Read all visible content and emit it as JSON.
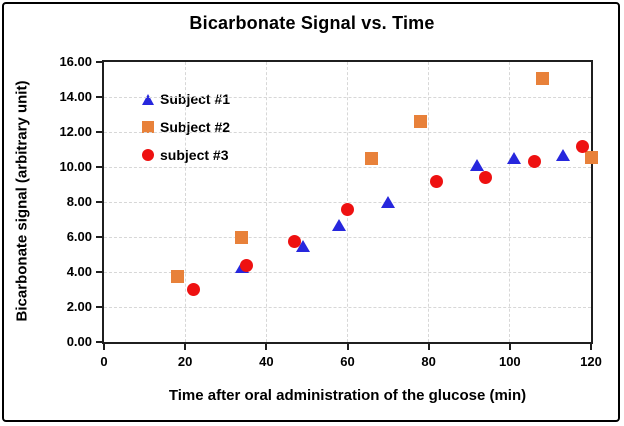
{
  "figure": {
    "background": "#ffffff",
    "border_color": "#000000",
    "axis_color": "#1f1f1f"
  },
  "chart_data": {
    "type": "scatter",
    "title": "Bicarbonate Signal vs. Time",
    "xlabel": "Time after oral administration of the glucose (min)",
    "ylabel": "Bicarbonate signal (arbitrary unit)",
    "xlim": [
      0,
      120
    ],
    "ylim": [
      0,
      16
    ],
    "x_ticks": [
      0,
      20,
      40,
      60,
      80,
      100,
      120
    ],
    "x_tick_labels": [
      "0",
      "20",
      "40",
      "60",
      "80",
      "100",
      "120"
    ],
    "y_ticks": [
      0,
      2,
      4,
      6,
      8,
      10,
      12,
      14,
      16
    ],
    "y_tick_labels": [
      "0.00",
      "2.00",
      "4.00",
      "6.00",
      "8.00",
      "10.00",
      "12.00",
      "14.00",
      "16.00"
    ],
    "grid": true,
    "gridline_color": "#d7d7d7",
    "legend_position": "top-left-inside",
    "series": [
      {
        "name": "Subject #1",
        "marker": "triangle",
        "color": "#2727dd",
        "points": [
          [
            34,
            4.3
          ],
          [
            49,
            5.5
          ],
          [
            58,
            6.7
          ],
          [
            70,
            8.0
          ],
          [
            92,
            10.1
          ],
          [
            101,
            10.5
          ],
          [
            113,
            10.7
          ]
        ]
      },
      {
        "name": "Subject #2",
        "marker": "square",
        "color": "#e8813a",
        "points": [
          [
            18,
            3.75
          ],
          [
            34,
            6.0
          ],
          [
            66,
            10.5
          ],
          [
            78,
            12.6
          ],
          [
            108,
            15.05
          ],
          [
            120,
            10.55
          ]
        ]
      },
      {
        "name": "subject #3",
        "marker": "circle",
        "color": "#ee1111",
        "points": [
          [
            22,
            3.0
          ],
          [
            35,
            4.4
          ],
          [
            47,
            5.75
          ],
          [
            60,
            7.55
          ],
          [
            82,
            9.2
          ],
          [
            94,
            9.4
          ],
          [
            106,
            10.3
          ],
          [
            118,
            11.2
          ]
        ]
      }
    ]
  }
}
